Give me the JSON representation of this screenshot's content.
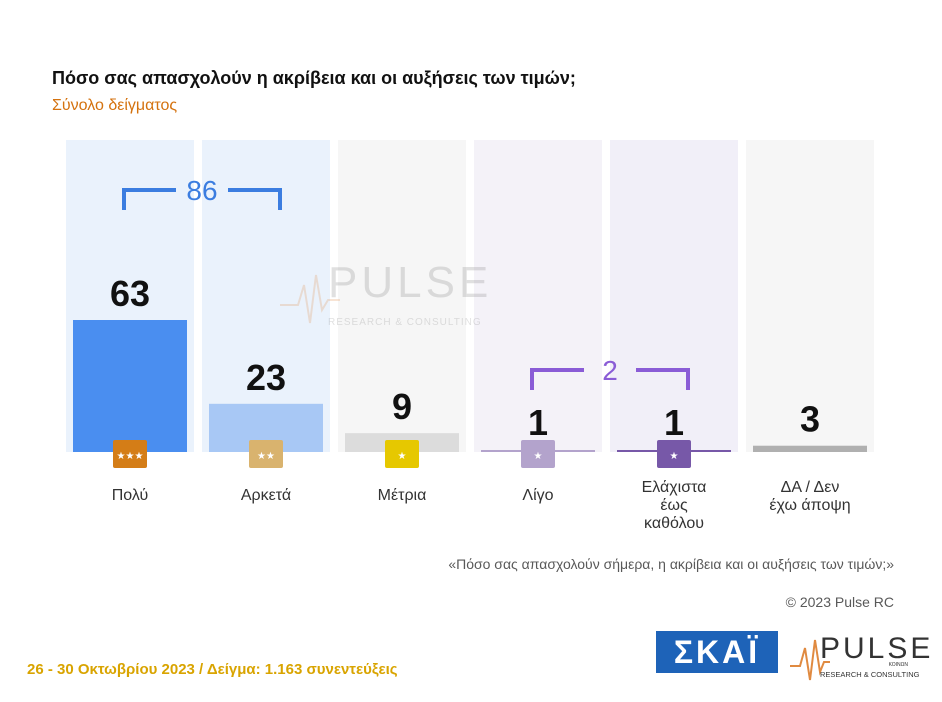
{
  "header": {
    "title": "Πόσο σας απασχολούν η ακρίβεια και οι αυξήσεις των τιμών;",
    "subtitle": "Σύνολο δείγματος"
  },
  "chart_data": {
    "type": "bar",
    "categories": [
      "Πολύ",
      "Αρκετά",
      "Μέτρια",
      "Λίγο",
      "Ελάχιστα έως καθόλου",
      "ΔΑ / Δεν έχω άποψη"
    ],
    "category_lines": [
      [
        "Πολύ"
      ],
      [
        "Αρκετά"
      ],
      [
        "Μέτρια"
      ],
      [
        "Λίγο"
      ],
      [
        "Ελάχιστα",
        "έως",
        "καθόλου"
      ],
      [
        "ΔΑ / Δεν",
        "έχω άποψη"
      ]
    ],
    "values": [
      63,
      23,
      9,
      1,
      1,
      3
    ],
    "ylim": [
      0,
      100
    ],
    "bar_colors": [
      "#4a8ef0",
      "#a8c8f5",
      "#dcdcdc",
      "#e8d8f0",
      "#e8d8f0",
      "#b0b0b0"
    ],
    "panel_colors": [
      "#eaf2fc",
      "#eaf2fc",
      "#f6f6f6",
      "#f4f2f8",
      "#f1eff8",
      "#f6f6f6"
    ],
    "icon_colors": [
      "#d47d17",
      "#d9b36e",
      "#e6c800",
      "#b3a3cc",
      "#7758a8",
      null
    ],
    "icon_names": [
      "three-stars-icon",
      "two-stars-icon",
      "one-star-icon",
      "half-star-icon",
      "small-star-icon",
      null
    ],
    "groups": [
      {
        "label": "86",
        "from": 0,
        "to": 1,
        "color": "#3b7de0"
      },
      {
        "label": "2",
        "from": 3,
        "to": 4,
        "color": "#8a5cd6"
      }
    ]
  },
  "notes": {
    "quote": "«Πόσο σας απασχολούν σήμερα, η ακρίβεια και οι αυξήσεις των τιμών;»",
    "copyright": "© 2023 Pulse RC"
  },
  "footer": {
    "text": "26 - 30  Οκτωβρίου  2023  /  Δείγμα:  1.163 συνεντεύξεις"
  },
  "logos": {
    "skai": "ΣΚΑΪ",
    "pulse_main": "PULSE",
    "pulse_tag": "RESEARCH & CONSULTING",
    "pulse_small": "ΚΟΙΝΩΝ"
  }
}
